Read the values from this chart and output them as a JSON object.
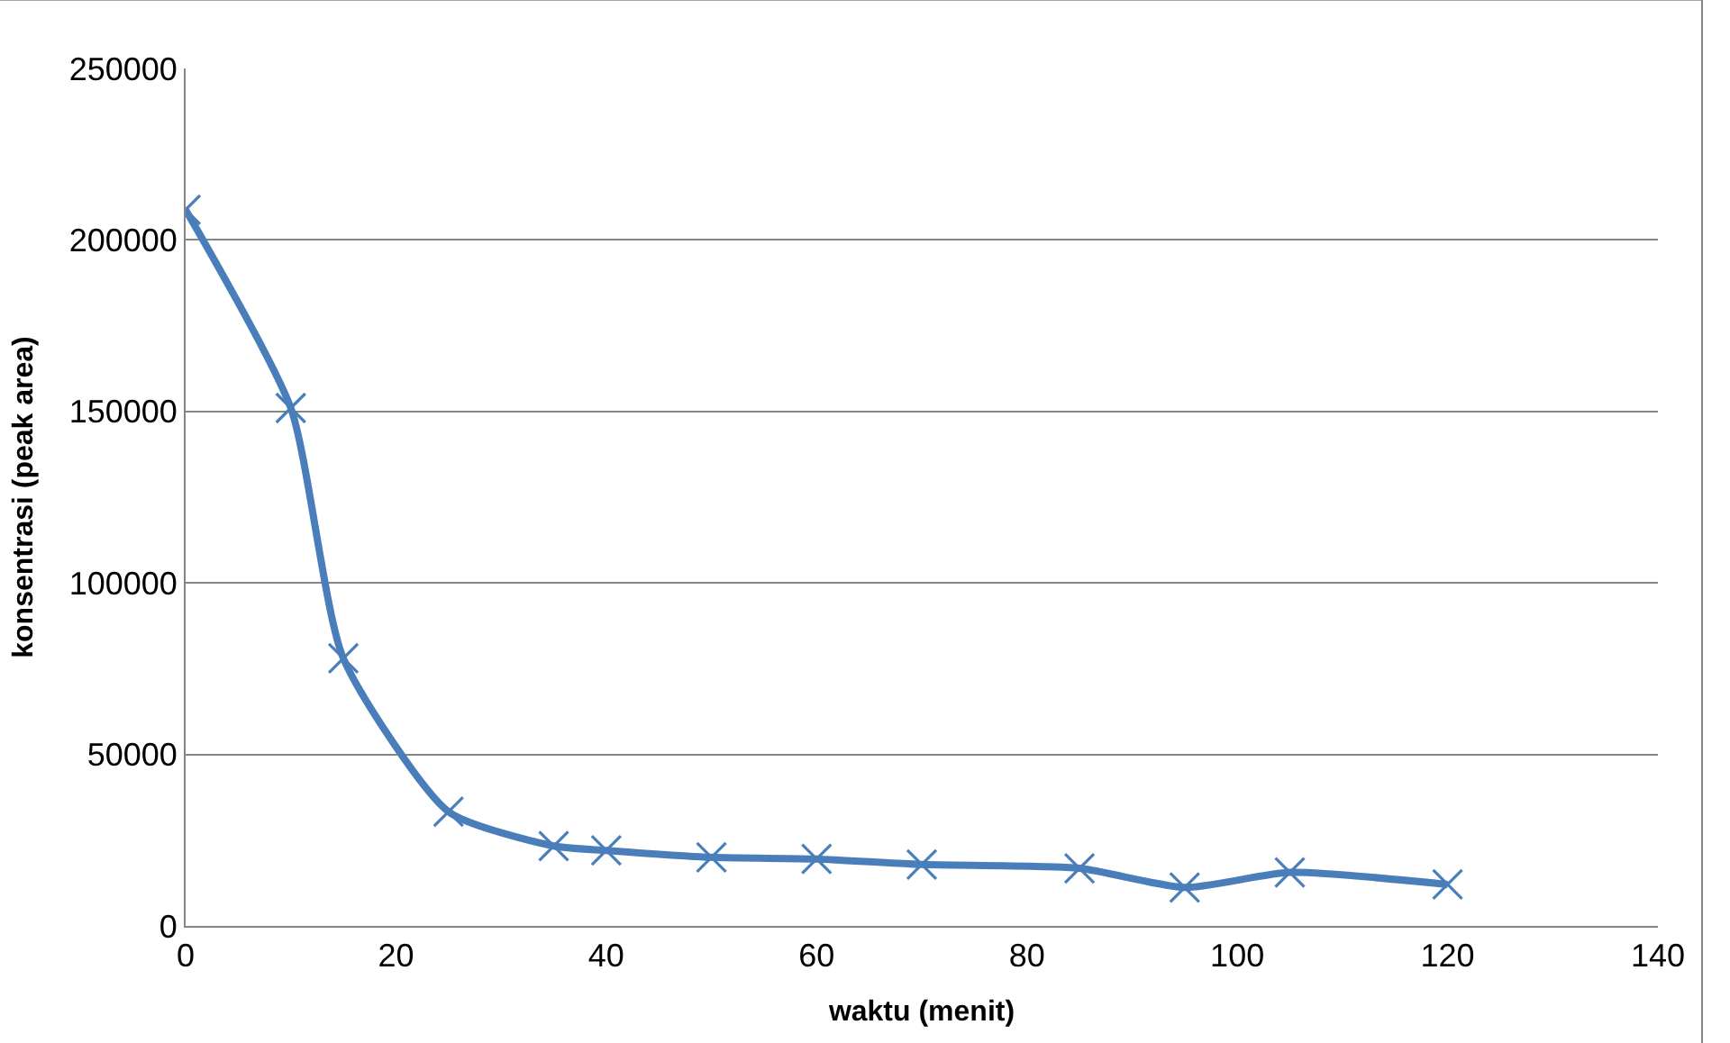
{
  "chart_data": {
    "type": "line",
    "xlabel": "waktu (menit)",
    "ylabel": "konsentrasi (peak area)",
    "x": [
      0,
      10,
      15,
      25,
      35,
      40,
      50,
      60,
      70,
      85,
      95,
      105,
      120
    ],
    "series": [
      {
        "color": "#4a7ebb",
        "values": [
          208800,
          151000,
          78000,
          33300,
          23300,
          22000,
          20000,
          19500,
          17900,
          16800,
          11200,
          15600,
          12100
        ]
      }
    ],
    "xlim": [
      0,
      140
    ],
    "xticks": [
      0,
      20,
      40,
      60,
      80,
      100,
      120,
      140
    ],
    "ylim": [
      0,
      250000
    ],
    "yticks": [
      0,
      50000,
      100000,
      150000,
      200000,
      250000
    ],
    "grid": "y",
    "legend": false,
    "marker": "cross",
    "line_style": "solid"
  }
}
